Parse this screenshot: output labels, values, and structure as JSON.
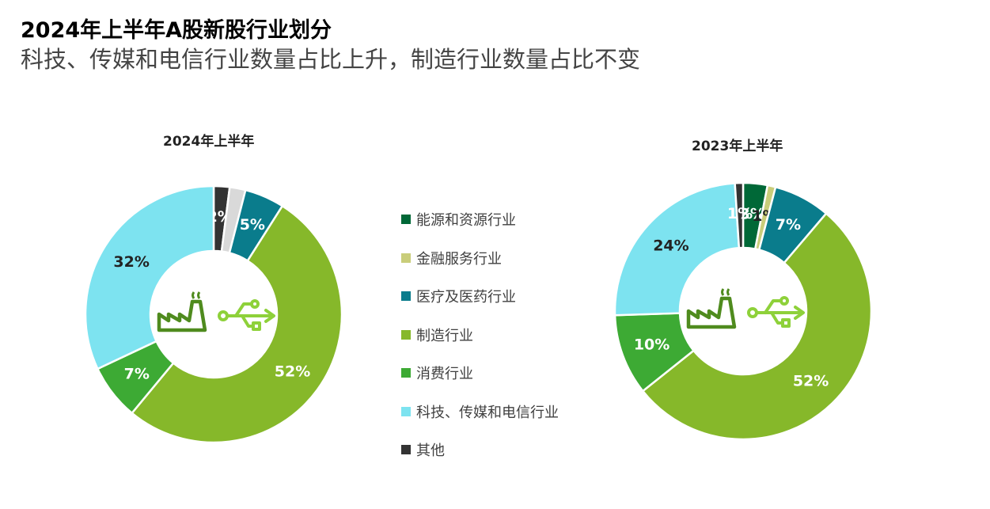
{
  "header": {
    "title": "2024年上半年A股新股行业划分",
    "subtitle": "科技、传媒和电信行业数量占比上升，制造行业数量占比不变"
  },
  "colors": {
    "energy": "#006837",
    "finance": "#C9CD7A",
    "medical": "#0A7C8C",
    "manufacturing": "#86B82A",
    "consumer": "#3DAA34",
    "tmt": "#7DE3F0",
    "other": "#333333",
    "icon_factory": "#4F8B1E",
    "icon_usb": "#8ED13A"
  },
  "legend": [
    {
      "label": "能源和资源行业",
      "color": "#006837"
    },
    {
      "label": "金融服务行业",
      "color": "#C9CD7A"
    },
    {
      "label": "医疗及医药行业",
      "color": "#0A7C8C"
    },
    {
      "label": "制造行业",
      "color": "#86B82A"
    },
    {
      "label": "消费行业",
      "color": "#3DAA34"
    },
    {
      "label": "科技、传媒和电信行业",
      "color": "#7DE3F0"
    },
    {
      "label": "其他",
      "color": "#333333"
    }
  ],
  "chart_data": [
    {
      "type": "pie",
      "title": "2024年上半年",
      "donut": true,
      "series": [
        {
          "name": "其他",
          "value": 2,
          "label": "2%",
          "color": "#333333"
        },
        {
          "name": "",
          "value": 2,
          "label": "",
          "color": "#D9D9D9"
        },
        {
          "name": "医疗及医药行业",
          "value": 5,
          "label": "5%",
          "color": "#0A7C8C"
        },
        {
          "name": "制造行业",
          "value": 52,
          "label": "52%",
          "color": "#86B82A"
        },
        {
          "name": "消费行业",
          "value": 7,
          "label": "7%",
          "color": "#3DAA34"
        },
        {
          "name": "科技、传媒和电信行业",
          "value": 32,
          "label": "32%",
          "color": "#7DE3F0"
        }
      ]
    },
    {
      "type": "pie",
      "title": "2023年上半年",
      "donut": true,
      "series": [
        {
          "name": "能源和资源行业",
          "value": 3,
          "label": "3%",
          "color": "#006837"
        },
        {
          "name": "金融服务行业",
          "value": 1,
          "label": "1%",
          "color": "#C9CD7A"
        },
        {
          "name": "医疗及医药行业",
          "value": 7,
          "label": "7%",
          "color": "#0A7C8C"
        },
        {
          "name": "制造行业",
          "value": 52,
          "label": "52%",
          "color": "#86B82A"
        },
        {
          "name": "消费行业",
          "value": 10,
          "label": "10%",
          "color": "#3DAA34"
        },
        {
          "name": "科技、传媒和电信行业",
          "value": 24,
          "label": "24%",
          "color": "#7DE3F0"
        },
        {
          "name": "其他",
          "value": 1,
          "label": "1%",
          "color": "#333333"
        }
      ]
    }
  ]
}
